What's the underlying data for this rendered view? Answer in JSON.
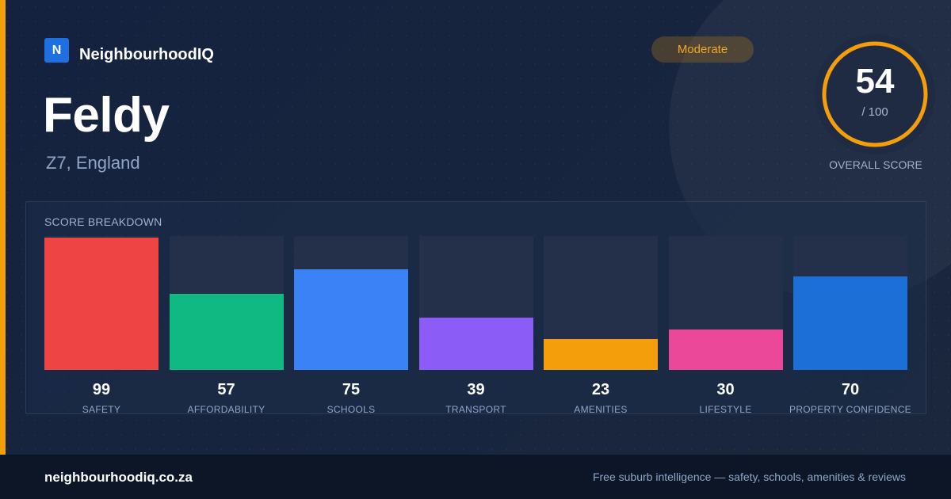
{
  "brand": {
    "logo_letter": "N",
    "name": "NeighbourhoodIQ",
    "accent_color": "#f59e0b",
    "logo_color": "#1e6fe0"
  },
  "place": {
    "name": "Feldy",
    "location": "Z7, England"
  },
  "rating_badge": {
    "label": "Moderate",
    "color": "#f5a623"
  },
  "overall": {
    "score": "54",
    "max": "/ 100",
    "label": "OVERALL SCORE",
    "fraction": 0.54,
    "ring_color": "#f59e0b"
  },
  "breakdown": {
    "title": "SCORE BREAKDOWN"
  },
  "chart_data": {
    "type": "bar",
    "categories": [
      "SAFETY",
      "AFFORDABILITY",
      "SCHOOLS",
      "TRANSPORT",
      "AMENITIES",
      "LIFESTYLE",
      "PROPERTY CONFIDENCE"
    ],
    "values": [
      99,
      57,
      75,
      39,
      23,
      30,
      70
    ],
    "colors": [
      "#ef4444",
      "#10b981",
      "#3b82f6",
      "#8b5cf6",
      "#f59e0b",
      "#ec4899",
      "#1d6fd8"
    ],
    "ylim": [
      0,
      100
    ]
  },
  "footer": {
    "domain": "neighbourhoodiq.co.za",
    "tagline": "Free suburb intelligence — safety, schools, amenities & reviews"
  }
}
